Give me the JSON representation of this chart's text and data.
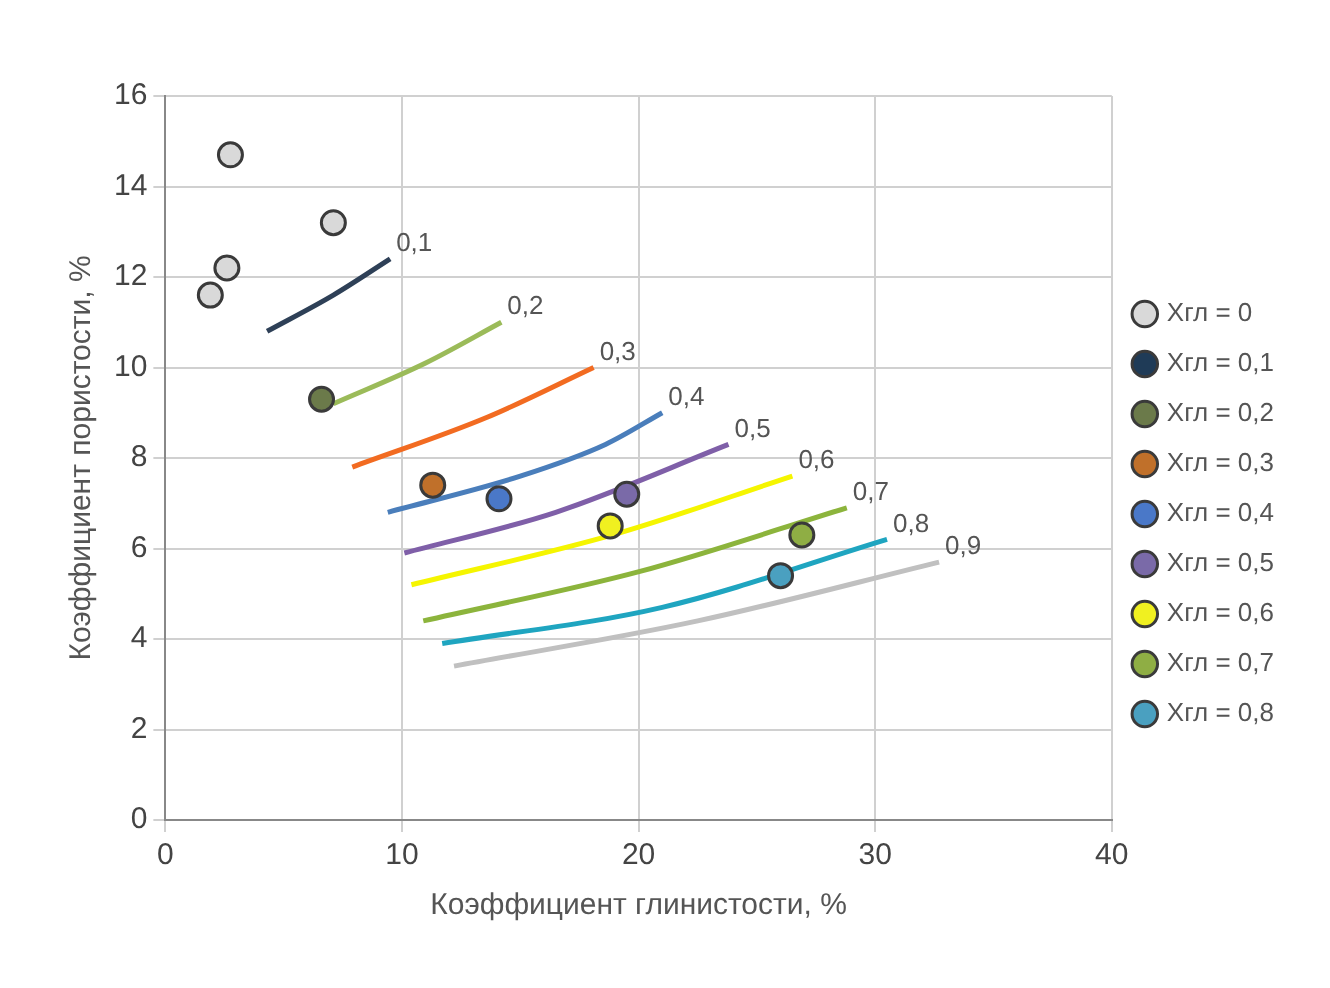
{
  "chart_data": {
    "type": "scatter",
    "xlabel": "Коэффициент глинистости, %",
    "ylabel": "Коэффициент пористости, %",
    "xlim": [
      0,
      40
    ],
    "ylim": [
      0,
      16
    ],
    "xticks": [
      0,
      10,
      20,
      30,
      40
    ],
    "yticks": [
      0,
      2,
      4,
      6,
      8,
      10,
      12,
      14,
      16
    ],
    "grid": true,
    "legend": "right",
    "marker": "circle",
    "series": [
      {
        "name": "Хгл = 0",
        "color": "#d9d9d9",
        "x": [
          2.75,
          7.1,
          2.6,
          1.9
        ],
        "values": [
          14.7,
          13.2,
          12.2,
          11.6
        ]
      },
      {
        "name": "Хгл = 0,1",
        "color": "#1f3b57"
      },
      {
        "name": "Хгл = 0,2",
        "color": "#6b7a4a",
        "x": [
          6.6
        ],
        "values": [
          9.3
        ]
      },
      {
        "name": "Хгл = 0,3",
        "color": "#c0702a",
        "x": [
          11.3
        ],
        "values": [
          7.4
        ]
      },
      {
        "name": "Хгл = 0,4",
        "color": "#4a78c8",
        "x": [
          14.1
        ],
        "values": [
          7.1
        ]
      },
      {
        "name": "Хгл = 0,5",
        "color": "#7a6aa8",
        "x": [
          19.5
        ],
        "values": [
          7.2
        ]
      },
      {
        "name": "Хгл = 0,6",
        "color": "#f0f020",
        "x": [
          18.8
        ],
        "values": [
          6.5
        ]
      },
      {
        "name": "Хгл = 0,7",
        "color": "#8fae44",
        "x": [
          26.9
        ],
        "values": [
          6.3
        ]
      },
      {
        "name": "Хгл = 0,8",
        "color": "#4aa0c0",
        "x": [
          26.0
        ],
        "values": [
          5.4
        ]
      },
      {
        "type": "line",
        "marker": "none",
        "name": "0,1",
        "color": "#2e4057",
        "x": [
          4.3,
          7.1,
          9.5
        ],
        "values": [
          10.8,
          11.6,
          12.4
        ]
      },
      {
        "type": "line",
        "marker": "none",
        "name": "0,2",
        "color": "#9bbb59",
        "x": [
          7.1,
          11.0,
          14.2
        ],
        "values": [
          9.2,
          10.1,
          11.0
        ]
      },
      {
        "type": "line",
        "marker": "none",
        "name": "0,3",
        "color": "#f26b21",
        "x": [
          7.9,
          13.6,
          18.1
        ],
        "values": [
          7.8,
          8.9,
          10.0
        ]
      },
      {
        "type": "line",
        "marker": "none",
        "name": "0,4",
        "color": "#4a7ebb",
        "x": [
          9.4,
          15.0,
          18.6,
          21.0
        ],
        "values": [
          6.8,
          7.6,
          8.3,
          9.0
        ]
      },
      {
        "type": "line",
        "marker": "none",
        "name": "0,5",
        "color": "#7f5fa8",
        "x": [
          10.1,
          16.5,
          23.8
        ],
        "values": [
          5.9,
          6.8,
          8.3
        ]
      },
      {
        "type": "line",
        "marker": "none",
        "name": "0,6",
        "color": "#f5f500",
        "x": [
          10.4,
          18.9,
          26.5
        ],
        "values": [
          5.2,
          6.3,
          7.6
        ]
      },
      {
        "type": "line",
        "marker": "none",
        "name": "0,7",
        "color": "#8cb43c",
        "x": [
          10.9,
          20.1,
          28.8
        ],
        "values": [
          4.4,
          5.5,
          6.9
        ]
      },
      {
        "type": "line",
        "marker": "none",
        "name": "0,8",
        "color": "#1fa5c0",
        "x": [
          11.7,
          21.0,
          30.5
        ],
        "values": [
          3.9,
          4.7,
          6.2
        ]
      },
      {
        "type": "line",
        "marker": "none",
        "name": "0,9",
        "color": "#c0c0c0",
        "x": [
          12.2,
          22.5,
          32.7
        ],
        "values": [
          3.4,
          4.4,
          5.7
        ]
      }
    ]
  }
}
